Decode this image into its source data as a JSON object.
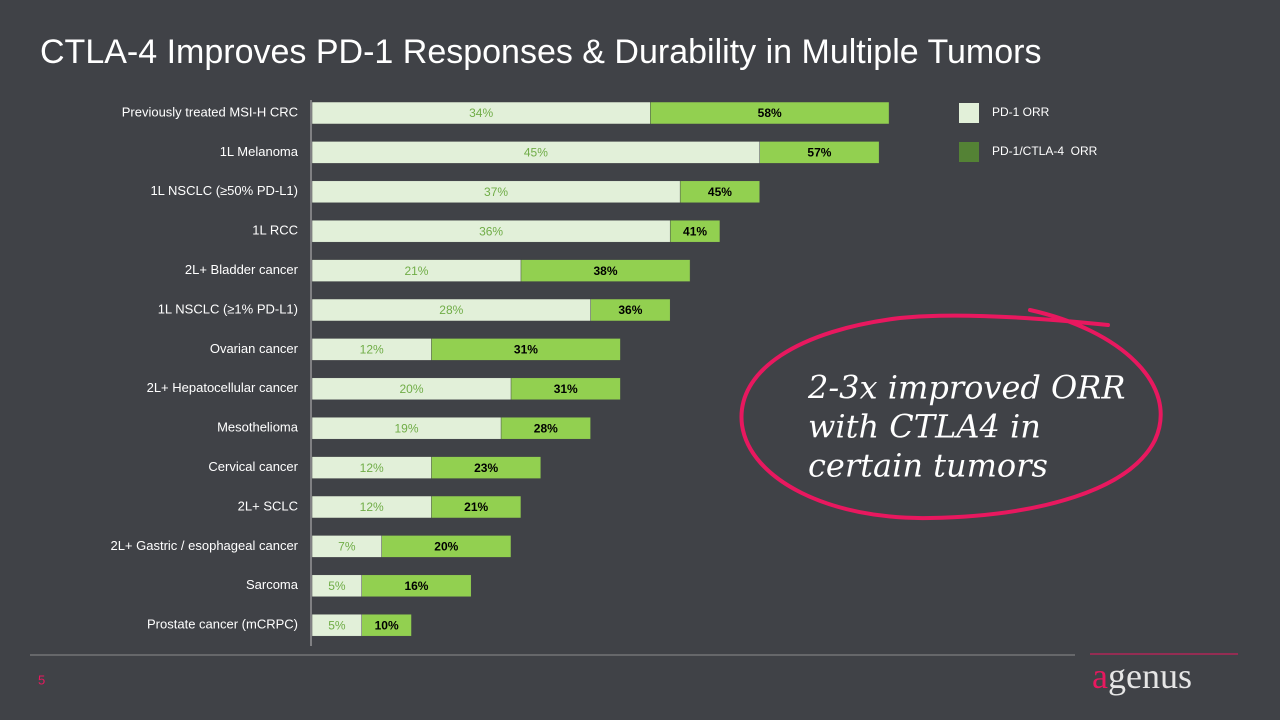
{
  "chart_data": {
    "type": "bar",
    "orientation": "horizontal",
    "bar_mode": "overlay",
    "title": "CTLA-4 Improves PD-1 Responses & Durability in Multiple Tumors",
    "categories": [
      "Previously treated MSI-H CRC",
      "1L Melanoma",
      "1L NSCLC (≥50% PD-L1)",
      "1L RCC",
      "2L+ Bladder cancer",
      "1L NSCLC (≥1% PD-L1)",
      "Ovarian cancer",
      "2L+ Hepatocellular cancer",
      "Mesothelioma",
      "Cervical cancer",
      "2L+ SCLC",
      "2L+ Gastric / esophageal cancer",
      "Sarcoma",
      "Prostate cancer (mCRPC)"
    ],
    "series": [
      {
        "name": "PD-1/CTLA-4  ORR",
        "color": "#92d050",
        "legend_color": "#548235",
        "label_color": "#000000",
        "values": [
          58,
          57,
          45,
          41,
          38,
          36,
          31,
          31,
          28,
          23,
          21,
          20,
          16,
          10
        ],
        "value_labels": [
          "58%",
          "57%",
          "45%",
          "41%",
          "38%",
          "36%",
          "31%",
          "31%",
          "28%",
          "23%",
          "21%",
          "20%",
          "16%",
          "10%"
        ]
      },
      {
        "name": "PD-1 ORR",
        "color": "#e2f0d9",
        "legend_color": "#e2f0d9",
        "label_color": "#70ad47",
        "values": [
          34,
          45,
          37,
          36,
          21,
          28,
          12,
          20,
          19,
          12,
          12,
          7,
          5,
          5
        ],
        "value_labels": [
          "34%",
          "45%",
          "37%",
          "36%",
          "21%",
          "28%",
          "12%",
          "20%",
          "19%",
          "12%",
          "12%",
          "7%",
          "5%",
          "5%"
        ]
      }
    ],
    "xlim": [
      0,
      60
    ],
    "annotation": [
      "2-3x improved ORR",
      "with CTLA4 in",
      "certain tumors"
    ]
  },
  "footer": {
    "page": "5",
    "logo": {
      "accent": "a",
      "rest": "genus"
    }
  }
}
